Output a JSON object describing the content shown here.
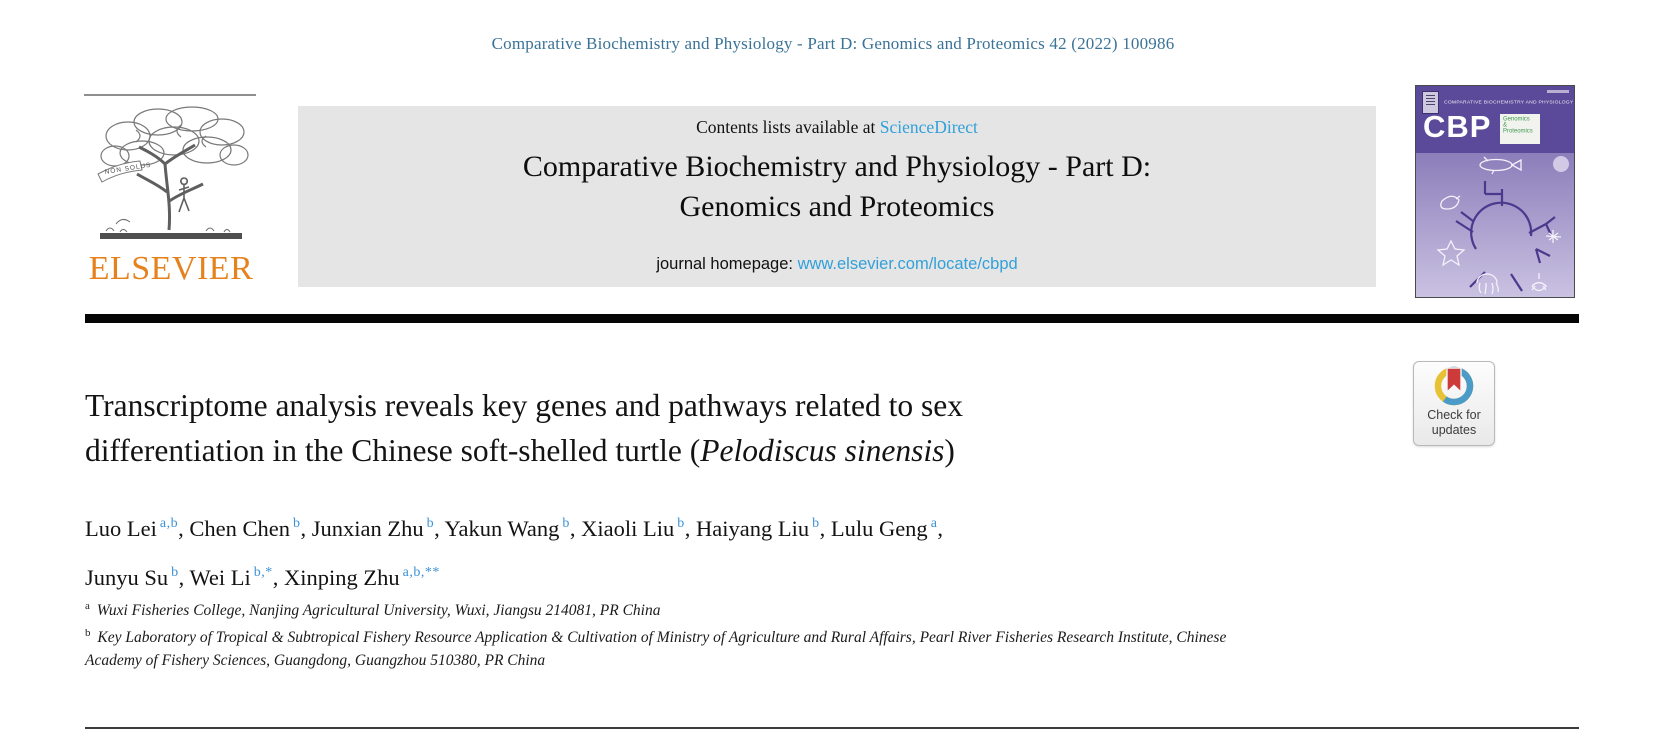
{
  "colors": {
    "citation_blue": "#3a7397",
    "link_blue": "#32a0da",
    "sup_blue": "#3d91d6",
    "elsevier_orange": "#e5821e",
    "banner_gray": "#e5e5e5",
    "cover_purple_dark": "#5a4a99",
    "cover_purple_mid": "#8b7eba",
    "cover_purple_light": "#cac2e2"
  },
  "citation": "Comparative Biochemistry and Physiology - Part D: Genomics and Proteomics 42 (2022) 100986",
  "masthead": {
    "contents_prefix": "Contents lists available at ",
    "sciencedirect_label": "ScienceDirect",
    "journal_title_line1": "Comparative Biochemistry and Physiology - Part D:",
    "journal_title_line2": "Genomics and Proteomics",
    "homepage_prefix": "journal homepage: ",
    "homepage_url": "www.elsevier.com/locate/cbpd"
  },
  "elsevier": {
    "wordmark": "ELSEVIER",
    "motto": "NON SOLUS"
  },
  "cover": {
    "top_text": "COMPARATIVE BIOCHEMISTRY AND PHYSIOLOGY",
    "abbrev": "CBP",
    "tagline_line1": "Genomics",
    "tagline_line2": "&",
    "tagline_line3": "Proteomics"
  },
  "badge": {
    "line1": "Check for",
    "line2": "updates"
  },
  "article": {
    "title_line1": "Transcriptome analysis reveals key genes and pathways related to sex",
    "title_line2_pre": "differentiation in the Chinese soft-shelled turtle (",
    "title_line2_italic": "Pelodiscus sinensis",
    "title_line2_post": ")",
    "authors": [
      {
        "name": "Luo Lei",
        "sup": "a,b"
      },
      {
        "name": "Chen Chen",
        "sup": "b"
      },
      {
        "name": "Junxian Zhu",
        "sup": "b"
      },
      {
        "name": "Yakun Wang",
        "sup": "b"
      },
      {
        "name": "Xiaoli Liu",
        "sup": "b"
      },
      {
        "name": "Haiyang Liu",
        "sup": "b"
      },
      {
        "name": "Lulu Geng",
        "sup": "a",
        "break_after": true
      },
      {
        "name": "Junyu Su",
        "sup": "b"
      },
      {
        "name": "Wei Li",
        "sup": "b,*"
      },
      {
        "name": "Xinping Zhu",
        "sup": "a,b,**"
      }
    ],
    "affiliations": [
      {
        "sup": "a",
        "text": "Wuxi Fisheries College, Nanjing Agricultural University, Wuxi, Jiangsu 214081, PR China"
      },
      {
        "sup": "b",
        "text": "Key Laboratory of Tropical & Subtropical Fishery Resource Application & Cultivation of Ministry of Agriculture and Rural Affairs, Pearl River Fisheries Research Institute, Chinese Academy of Fishery Sciences, Guangdong, Guangzhou 510380, PR China"
      }
    ]
  }
}
